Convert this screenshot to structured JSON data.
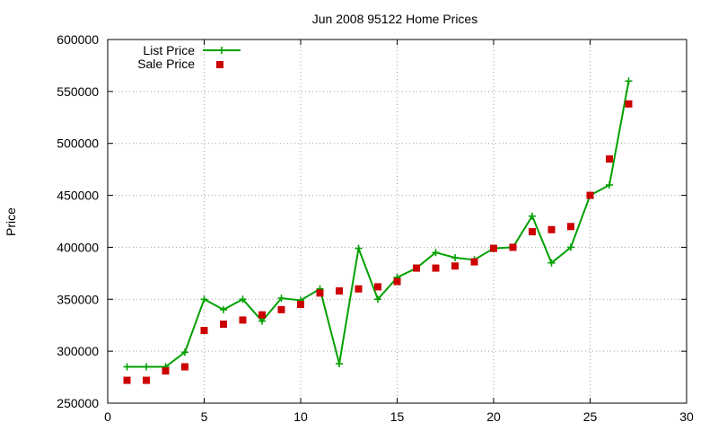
{
  "chart_data": {
    "type": "line",
    "title": "Jun 2008 95122 Home Prices",
    "xlabel": "",
    "ylabel": "Price",
    "xlim": [
      0,
      30
    ],
    "ylim": [
      250000,
      600000
    ],
    "xticks": [
      0,
      5,
      10,
      15,
      20,
      25,
      30
    ],
    "yticks": [
      250000,
      300000,
      350000,
      400000,
      450000,
      500000,
      550000,
      600000
    ],
    "grid": true,
    "legend_position": "top-left",
    "series": [
      {
        "name": "List Price",
        "style": "line-with-plus-markers",
        "color": "#00a000",
        "x": [
          1,
          2,
          3,
          4,
          5,
          6,
          7,
          8,
          9,
          10,
          11,
          12,
          13,
          14,
          15,
          16,
          17,
          18,
          19,
          20,
          21,
          22,
          23,
          24,
          25,
          26,
          27
        ],
        "y": [
          285000,
          285000,
          285000,
          299000,
          350000,
          340000,
          350000,
          329000,
          351000,
          349000,
          360000,
          288000,
          399000,
          350000,
          371000,
          380000,
          395000,
          390000,
          388000,
          399000,
          400000,
          430000,
          385000,
          400000,
          450000,
          460000,
          560000
        ]
      },
      {
        "name": "Sale Price",
        "style": "square-markers",
        "color": "#cc0000",
        "x": [
          1,
          2,
          3,
          4,
          5,
          6,
          7,
          8,
          9,
          10,
          11,
          12,
          13,
          14,
          15,
          16,
          17,
          18,
          19,
          20,
          21,
          22,
          23,
          24,
          25,
          26,
          27
        ],
        "y": [
          272000,
          272000,
          281000,
          285000,
          320000,
          326000,
          330000,
          335000,
          340000,
          345000,
          356000,
          358000,
          360000,
          362000,
          367000,
          380000,
          380000,
          382000,
          386000,
          399000,
          400000,
          415000,
          417000,
          420000,
          450000,
          485000,
          538000
        ]
      }
    ]
  }
}
